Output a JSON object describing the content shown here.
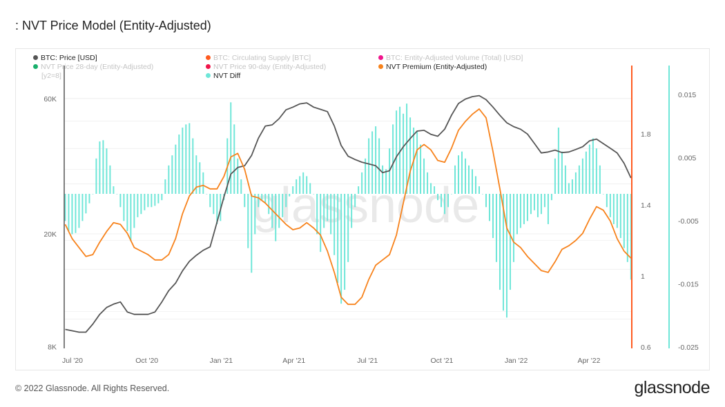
{
  "title": ": NVT Price Model (Entity-Adjusted)",
  "footer": "© 2022 Glassnode. All Rights Reserved.",
  "logo": "glassnode",
  "watermark": "glassnode",
  "chart_data": {
    "type": "line",
    "title": "NVT Price Model (Entity-Adjusted)",
    "legend_placement": "top-left",
    "legend": [
      {
        "label": "BTC: Price [USD]",
        "color": "#555555",
        "active": true
      },
      {
        "label": "BTC: Circulating Supply [BTC]",
        "color": "#ff5a1f",
        "active": false
      },
      {
        "label": "BTC: Entity-Adjusted Volume (Total) [USD]",
        "color": "#f0158c",
        "active": false
      },
      {
        "label": "NVT Price 28-day (Entity-Adjusted)",
        "color": "#1aaf6c",
        "active": false
      },
      {
        "label": "NVT Price 90-day (Entity-Adjusted)",
        "color": "#f0154a",
        "active": false
      },
      {
        "label": "NVT Premium (Entity-Adjusted)",
        "color": "#f7821b",
        "active": true
      },
      {
        "label": "[y2=8]",
        "color": "",
        "active": false
      },
      {
        "label": "NVT Diff",
        "color": "#6ee6d8",
        "active": true
      }
    ],
    "x_start": "2020-06-22",
    "x_end": "2022-05-23",
    "x_ticks": [
      {
        "label": "Jul '20",
        "date": "2020-07-01"
      },
      {
        "label": "Oct '20",
        "date": "2020-10-01"
      },
      {
        "label": "Jan '21",
        "date": "2021-01-01"
      },
      {
        "label": "Apr '21",
        "date": "2021-04-01"
      },
      {
        "label": "Jul '21",
        "date": "2021-07-01"
      },
      {
        "label": "Oct '21",
        "date": "2021-10-01"
      },
      {
        "label": "Jan '22",
        "date": "2022-01-01"
      },
      {
        "label": "Apr '22",
        "date": "2022-04-01"
      }
    ],
    "y_left": {
      "scale": "log",
      "ticks": [
        {
          "label": "8K",
          "value": 8000
        },
        {
          "label": "20K",
          "value": 20000
        },
        {
          "label": "60K",
          "value": 60000
        }
      ]
    },
    "y_right1": {
      "range": [
        0.6,
        2.2
      ],
      "ticks": [
        {
          "label": "0.6",
          "value": 0.6
        },
        {
          "label": "1",
          "value": 1
        },
        {
          "label": "1.4",
          "value": 1.4
        },
        {
          "label": "1.8",
          "value": 1.8
        }
      ]
    },
    "y_right2": {
      "range": [
        -0.025,
        0.0195
      ],
      "ticks": [
        {
          "label": "-0.025",
          "value": -0.025
        },
        {
          "label": "-0.015",
          "value": -0.015
        },
        {
          "label": "-0.005",
          "value": -0.005
        },
        {
          "label": "0.005",
          "value": 0.005
        },
        {
          "label": "0.015",
          "value": 0.015
        }
      ]
    },
    "series": [
      {
        "name": "BTC: Price [USD]",
        "axis": "left",
        "color": "#555555",
        "values": [
          9200,
          9100,
          9000,
          9000,
          9600,
          10400,
          11000,
          11300,
          11500,
          10600,
          10400,
          10400,
          10400,
          10600,
          11500,
          12600,
          13400,
          14800,
          16000,
          16800,
          17500,
          18000,
          22000,
          27000,
          32500,
          34300,
          34800,
          37800,
          43500,
          48000,
          48500,
          51000,
          54800,
          56000,
          57500,
          58000,
          56000,
          55000,
          54000,
          48000,
          41000,
          37600,
          36600,
          35800,
          35300,
          34800,
          32900,
          33400,
          37400,
          40600,
          43400,
          46100,
          46400,
          44900,
          44200,
          46800,
          52500,
          57700,
          59800,
          61000,
          61500,
          59500,
          56000,
          52400,
          49300,
          47800,
          46800,
          45000,
          41700,
          38600,
          38900,
          39500,
          38700,
          38900,
          39700,
          40600,
          42600,
          43200,
          41600,
          40100,
          38600,
          35500,
          31500
        ]
      },
      {
        "name": "NVT Premium (Entity-Adjusted)",
        "axis": "right1",
        "color": "#f7821b",
        "values": [
          1.29,
          1.21,
          1.16,
          1.11,
          1.12,
          1.19,
          1.25,
          1.3,
          1.29,
          1.24,
          1.16,
          1.14,
          1.12,
          1.09,
          1.09,
          1.12,
          1.21,
          1.35,
          1.45,
          1.5,
          1.51,
          1.49,
          1.49,
          1.56,
          1.67,
          1.69,
          1.6,
          1.45,
          1.44,
          1.41,
          1.37,
          1.33,
          1.29,
          1.26,
          1.27,
          1.3,
          1.27,
          1.23,
          1.14,
          1.02,
          0.88,
          0.84,
          0.84,
          0.88,
          0.98,
          1.06,
          1.09,
          1.12,
          1.23,
          1.41,
          1.59,
          1.71,
          1.74,
          1.71,
          1.65,
          1.64,
          1.72,
          1.82,
          1.87,
          1.91,
          1.94,
          1.89,
          1.7,
          1.49,
          1.27,
          1.19,
          1.16,
          1.11,
          1.07,
          1.03,
          1.02,
          1.08,
          1.15,
          1.17,
          1.2,
          1.24,
          1.32,
          1.39,
          1.37,
          1.31,
          1.21,
          1.14,
          1.1
        ]
      },
      {
        "name": "NVT Diff",
        "axis": "right2",
        "type": "bar",
        "color": "#6ee6d8",
        "values": [
          -0.0043,
          -0.0059,
          -0.0064,
          -0.0062,
          -0.0054,
          -0.0043,
          -0.0031,
          -0.0015,
          0,
          0.0056,
          0.0083,
          0.0085,
          0.0072,
          0.0045,
          0.0012,
          0,
          -0.0021,
          -0.0043,
          -0.0059,
          -0.0075,
          -0.0054,
          -0.0037,
          -0.0032,
          -0.0026,
          -0.0021,
          -0.0021,
          -0.0019,
          -0.0015,
          -0.001,
          0.0023,
          0.0045,
          0.0061,
          0.0078,
          0.0094,
          0.0105,
          0.011,
          0.0112,
          0.0088,
          0.0061,
          0.005,
          0.0034,
          0,
          -0.0021,
          -0.0032,
          -0.0048,
          -0.0043,
          -0.001,
          0.0088,
          0.0145,
          0.011,
          0.0056,
          0.0023,
          -0.0021,
          -0.0086,
          -0.0125,
          -0.0064,
          -0.0021,
          -0.001,
          -0.0015,
          -0.0032,
          -0.0054,
          -0.0075,
          -0.0054,
          -0.0037,
          -0.0021,
          -0.0004,
          0.0012,
          0.0023,
          0.0028,
          0.0034,
          0.0028,
          0.0017,
          0,
          -0.0064,
          -0.0092,
          -0.0054,
          -0.0043,
          -0.0064,
          -0.0097,
          -0.0141,
          -0.0174,
          -0.0152,
          -0.0108,
          -0.0054,
          -0.0021,
          0.0012,
          0.0034,
          0.0056,
          0.0088,
          0.0099,
          0.0107,
          0.0088,
          0.0045,
          0.0039,
          0.0072,
          0.011,
          0.0132,
          0.0138,
          0.0127,
          0.0143,
          0.0121,
          0.0105,
          0.0099,
          0.0078,
          0.0056,
          0.0034,
          0.0017,
          0.0012,
          -0.001,
          -0.0021,
          -0.0032,
          -0.0021,
          0,
          0.0045,
          0.0061,
          0.0067,
          0.0056,
          0.0045,
          0.0039,
          0.0028,
          0.0012,
          0,
          -0.0021,
          -0.0043,
          -0.007,
          -0.0108,
          -0.0152,
          -0.0185,
          -0.0196,
          -0.0152,
          -0.0108,
          -0.0064,
          -0.0054,
          -0.0048,
          -0.0043,
          -0.0032,
          -0.0026,
          -0.0037,
          -0.0032,
          -0.0021,
          -0.0048,
          -0.001,
          0.0056,
          0.0105,
          0.0067,
          0.0045,
          0.0017,
          0.0023,
          0.0034,
          0.0045,
          0.0056,
          0.0067,
          0.0078,
          0.0088,
          0.0072,
          0.0045,
          0,
          -0.0021,
          -0.0037,
          -0.0048,
          -0.0054,
          -0.007,
          -0.0086,
          -0.0108,
          -0.0136
        ]
      }
    ]
  }
}
